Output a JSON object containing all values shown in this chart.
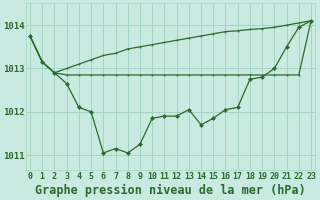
{
  "title": "Graphe pression niveau de la mer (hPa)",
  "x": [
    0,
    1,
    2,
    3,
    4,
    5,
    6,
    7,
    8,
    9,
    10,
    11,
    12,
    13,
    14,
    15,
    16,
    17,
    18,
    19,
    20,
    21,
    22,
    23
  ],
  "xlabel_labels": [
    "0",
    "1",
    "2",
    "3",
    "4",
    "5",
    "6",
    "7",
    "8",
    "9",
    "10",
    "11",
    "12",
    "13",
    "14",
    "15",
    "16",
    "17",
    "18",
    "19",
    "20",
    "21",
    "22",
    "23"
  ],
  "line_main": [
    1013.75,
    1013.15,
    1012.9,
    1012.65,
    1012.1,
    1012.0,
    1011.05,
    1011.15,
    1011.05,
    1011.25,
    1011.85,
    1011.9,
    1011.9,
    1012.05,
    1011.7,
    1011.85,
    1012.05,
    1012.1,
    1012.75,
    1012.8,
    1013.0,
    1013.5,
    1013.95,
    1014.1
  ],
  "line_upper": [
    1013.75,
    1013.15,
    1012.9,
    1013.0,
    1013.1,
    1013.2,
    1013.3,
    1013.35,
    1013.45,
    1013.5,
    1013.55,
    1013.6,
    1013.65,
    1013.7,
    1013.75,
    1013.8,
    1013.85,
    1013.87,
    1013.9,
    1013.92,
    1013.95,
    1014.0,
    1014.05,
    1014.1
  ],
  "line_flat": [
    1013.75,
    1013.15,
    1012.9,
    1012.85,
    1012.85,
    1012.85,
    1012.85,
    1012.85,
    1012.85,
    1012.85,
    1012.85,
    1012.85,
    1012.85,
    1012.85,
    1012.85,
    1012.85,
    1012.85,
    1012.85,
    1012.85,
    1012.85,
    1012.85,
    1012.85,
    1012.85,
    1014.1
  ],
  "line_color": "#2d6a2d",
  "bg_color": "#c8eae0",
  "grid_color": "#a8d4c4",
  "ylim": [
    1010.65,
    1014.5
  ],
  "yticks": [
    1011,
    1012,
    1013,
    1014
  ],
  "xlim": [
    -0.3,
    23.3
  ],
  "tick_fontsize": 6.5,
  "title_fontsize": 8.5
}
